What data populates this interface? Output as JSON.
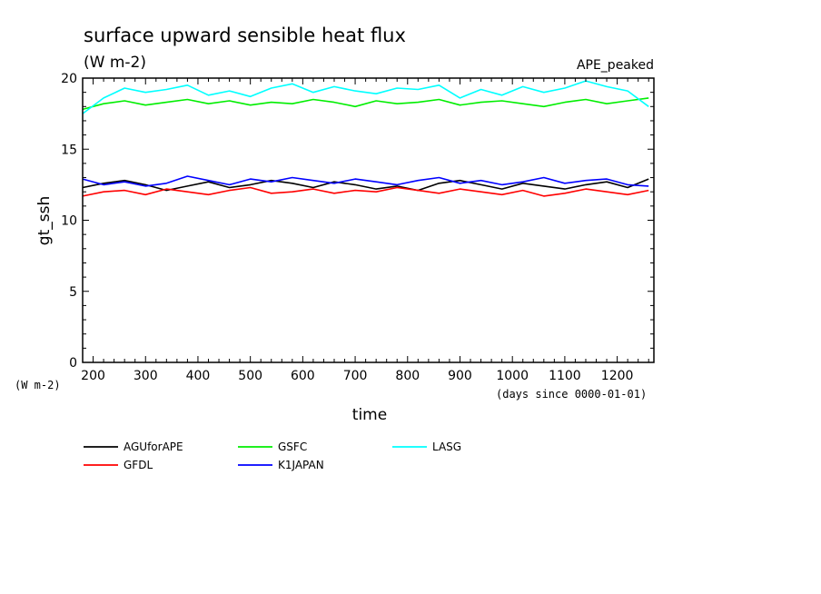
{
  "chart_data": {
    "type": "line",
    "title": "surface upward sensible heat flux",
    "units": "(W m-2)",
    "experiment": "APE_peaked",
    "xlabel": "time",
    "x_units": "(days since 0000-01-01)",
    "ylabel": "gt_ssh",
    "y_units": "(W m-2)",
    "xlim": [
      180,
      1270
    ],
    "ylim": [
      0,
      20
    ],
    "x_ticks": [
      "200",
      "300",
      "400",
      "500",
      "600",
      "700",
      "800",
      "900",
      "1000",
      "1100",
      "1200"
    ],
    "y_ticks": [
      "0",
      "5",
      "10",
      "15",
      "20"
    ],
    "series": [
      {
        "name": "AGUforAPE",
        "color": "#000000",
        "x": [
          180,
          220,
          260,
          300,
          340,
          380,
          420,
          460,
          500,
          540,
          580,
          620,
          660,
          700,
          740,
          780,
          820,
          860,
          900,
          940,
          980,
          1020,
          1060,
          1100,
          1140,
          1180,
          1220,
          1260
        ],
        "values": [
          12.3,
          12.6,
          12.8,
          12.5,
          12.1,
          12.4,
          12.7,
          12.3,
          12.5,
          12.8,
          12.6,
          12.3,
          12.7,
          12.5,
          12.2,
          12.4,
          12.1,
          12.6,
          12.8,
          12.5,
          12.2,
          12.6,
          12.4,
          12.2,
          12.5,
          12.7,
          12.3,
          12.9
        ]
      },
      {
        "name": "GFDL",
        "color": "#ff0000",
        "x": [
          180,
          220,
          260,
          300,
          340,
          380,
          420,
          460,
          500,
          540,
          580,
          620,
          660,
          700,
          740,
          780,
          820,
          860,
          900,
          940,
          980,
          1020,
          1060,
          1100,
          1140,
          1180,
          1220,
          1260
        ],
        "values": [
          11.7,
          12.0,
          12.1,
          11.8,
          12.2,
          12.0,
          11.8,
          12.1,
          12.3,
          11.9,
          12.0,
          12.2,
          11.9,
          12.1,
          12.0,
          12.3,
          12.1,
          11.9,
          12.2,
          12.0,
          11.8,
          12.1,
          11.7,
          11.9,
          12.2,
          12.0,
          11.8,
          12.1
        ]
      },
      {
        "name": "GSFC",
        "color": "#00ee00",
        "x": [
          180,
          220,
          260,
          300,
          340,
          380,
          420,
          460,
          500,
          540,
          580,
          620,
          660,
          700,
          740,
          780,
          820,
          860,
          900,
          940,
          980,
          1020,
          1060,
          1100,
          1140,
          1180,
          1220,
          1260
        ],
        "values": [
          17.8,
          18.2,
          18.4,
          18.1,
          18.3,
          18.5,
          18.2,
          18.4,
          18.1,
          18.3,
          18.2,
          18.5,
          18.3,
          18.0,
          18.4,
          18.2,
          18.3,
          18.5,
          18.1,
          18.3,
          18.4,
          18.2,
          18.0,
          18.3,
          18.5,
          18.2,
          18.4,
          18.6
        ]
      },
      {
        "name": "K1JAPAN",
        "color": "#0000ff",
        "x": [
          180,
          220,
          260,
          300,
          340,
          380,
          420,
          460,
          500,
          540,
          580,
          620,
          660,
          700,
          740,
          780,
          820,
          860,
          900,
          940,
          980,
          1020,
          1060,
          1100,
          1140,
          1180,
          1220,
          1260
        ],
        "values": [
          12.9,
          12.5,
          12.7,
          12.4,
          12.6,
          13.1,
          12.8,
          12.5,
          12.9,
          12.7,
          13.0,
          12.8,
          12.6,
          12.9,
          12.7,
          12.5,
          12.8,
          13.0,
          12.6,
          12.8,
          12.5,
          12.7,
          13.0,
          12.6,
          12.8,
          12.9,
          12.5,
          12.4
        ]
      },
      {
        "name": "LASG",
        "color": "#00ffff",
        "x": [
          180,
          220,
          260,
          300,
          340,
          380,
          420,
          460,
          500,
          540,
          580,
          620,
          660,
          700,
          740,
          780,
          820,
          860,
          900,
          940,
          980,
          1020,
          1060,
          1100,
          1140,
          1180,
          1220,
          1260
        ],
        "values": [
          17.5,
          18.6,
          19.3,
          19.0,
          19.2,
          19.5,
          18.8,
          19.1,
          18.7,
          19.3,
          19.6,
          19.0,
          19.4,
          19.1,
          18.9,
          19.3,
          19.2,
          19.5,
          18.6,
          19.2,
          18.8,
          19.4,
          19.0,
          19.3,
          19.8,
          19.4,
          19.1,
          18.0
        ]
      }
    ],
    "legend": [
      "AGUforAPE",
      "GFDL",
      "GSFC",
      "K1JAPAN",
      "LASG"
    ],
    "legend_placement": "bottom"
  }
}
